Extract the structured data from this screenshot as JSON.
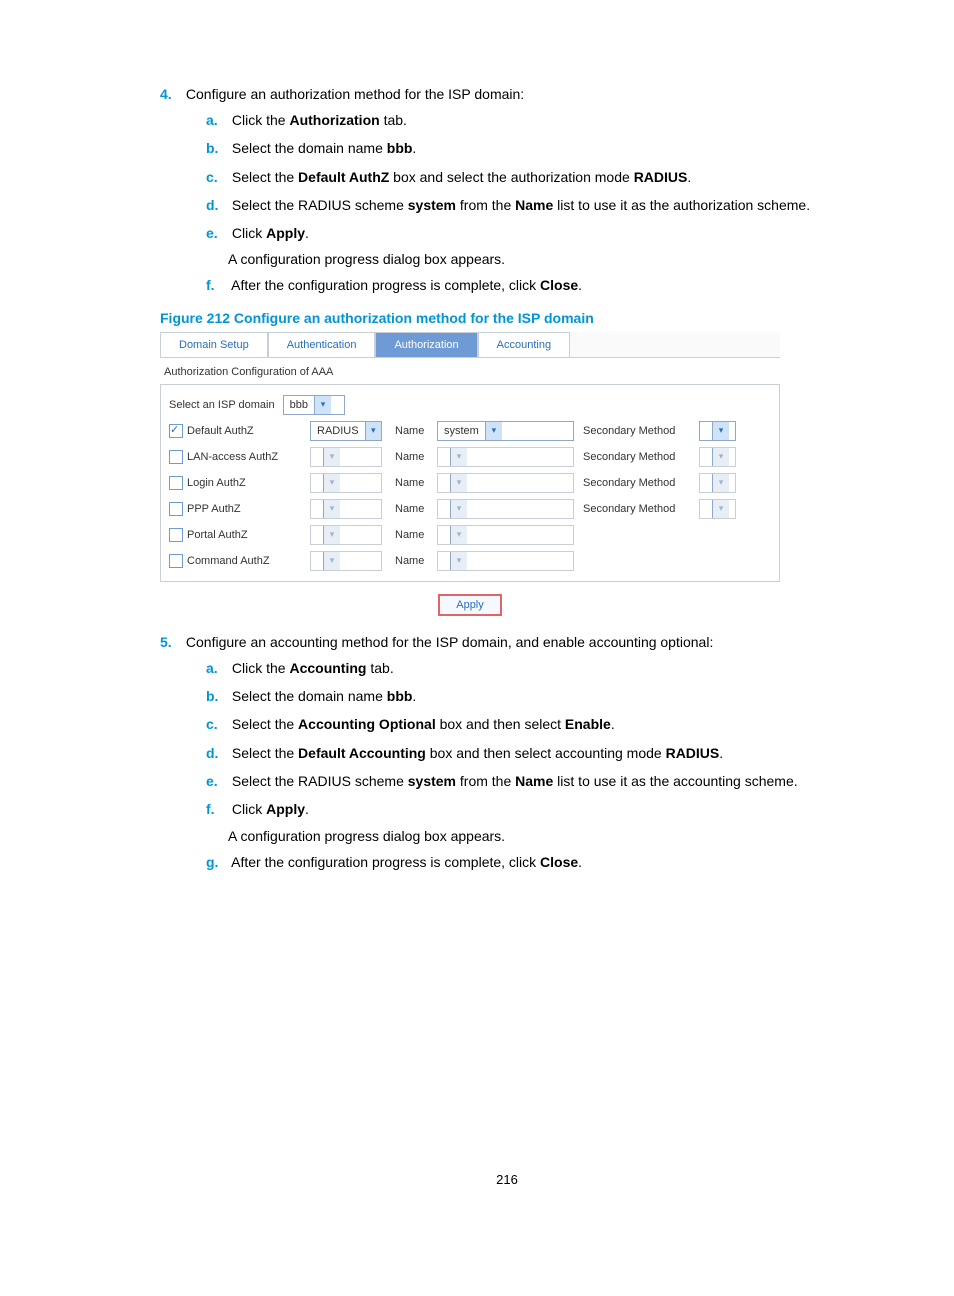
{
  "step4": {
    "num": "4.",
    "title": "Configure an authorization method for the ISP domain:",
    "subs": {
      "a": {
        "letter": "a.",
        "pre": "Click the ",
        "bold": "Authorization",
        "post": " tab."
      },
      "b": {
        "letter": "b.",
        "pre": "Select the domain name ",
        "bold": "bbb",
        "post": "."
      },
      "c": {
        "letter": "c.",
        "pre": "Select the ",
        "bold1": "Default AuthZ",
        "mid": " box and select the authorization mode ",
        "bold2": "RADIUS",
        "post": "."
      },
      "d": {
        "letter": "d.",
        "pre": "Select the RADIUS scheme ",
        "bold1": "system",
        "mid": " from the ",
        "bold2": "Name",
        "post": " list to use it as the authorization scheme."
      },
      "e": {
        "letter": "e.",
        "pre": "Click ",
        "bold": "Apply",
        "post": ".",
        "extra": "A configuration progress dialog box appears."
      },
      "f": {
        "letter": "f.",
        "pre": "After the configuration progress is complete, click ",
        "bold": "Close",
        "post": "."
      }
    }
  },
  "figure": {
    "caption": "Figure 212 Configure an authorization method for the ISP domain",
    "tabs": [
      "Domain Setup",
      "Authentication",
      "Authorization",
      "Accounting"
    ],
    "active_tab": 2,
    "section_label": "Authorization Configuration of AAA",
    "domain_label": "Select an ISP domain",
    "domain_value": "bbb",
    "rows": [
      {
        "label": "Default AuthZ",
        "checked": true,
        "mode": "RADIUS",
        "name": "system",
        "sec": "Secondary Method",
        "sec_dd": true,
        "enabled": true
      },
      {
        "label": "LAN-access AuthZ",
        "checked": false,
        "mode": "",
        "name": "",
        "sec": "Secondary Method",
        "sec_dd": true,
        "enabled": false
      },
      {
        "label": "Login AuthZ",
        "checked": false,
        "mode": "",
        "name": "",
        "sec": "Secondary Method",
        "sec_dd": true,
        "enabled": false
      },
      {
        "label": "PPP AuthZ",
        "checked": false,
        "mode": "",
        "name": "",
        "sec": "Secondary Method",
        "sec_dd": true,
        "enabled": false
      },
      {
        "label": "Portal AuthZ",
        "checked": false,
        "mode": "",
        "name": "",
        "sec": "",
        "sec_dd": false,
        "enabled": false
      },
      {
        "label": "Command AuthZ",
        "checked": false,
        "mode": "",
        "name": "",
        "sec": "",
        "sec_dd": false,
        "enabled": false
      }
    ],
    "name_col": "Name",
    "apply": "Apply"
  },
  "step5": {
    "num": "5.",
    "title": "Configure an accounting method for the ISP domain, and enable accounting optional:",
    "subs": {
      "a": {
        "letter": "a.",
        "pre": "Click the ",
        "bold": "Accounting",
        "post": " tab."
      },
      "b": {
        "letter": "b.",
        "pre": "Select the domain name ",
        "bold": "bbb",
        "post": "."
      },
      "c": {
        "letter": "c.",
        "pre": "Select the ",
        "bold1": "Accounting Optional",
        "mid": " box and then select ",
        "bold2": "Enable",
        "post": "."
      },
      "d": {
        "letter": "d.",
        "pre": "Select the ",
        "bold1": "Default Accounting",
        "mid": " box and then select accounting mode ",
        "bold2": "RADIUS",
        "post": "."
      },
      "e": {
        "letter": "e.",
        "pre": "Select the RADIUS scheme ",
        "bold1": "system",
        "mid": " from the ",
        "bold2": "Name",
        "post": " list to use it as the accounting scheme."
      },
      "f": {
        "letter": "f.",
        "pre": "Click ",
        "bold": "Apply",
        "post": ".",
        "extra": "A configuration progress dialog box appears."
      },
      "g": {
        "letter": "g.",
        "pre": "After the configuration progress is complete, click ",
        "bold": "Close",
        "post": "."
      }
    }
  },
  "page_number": "216",
  "colors": {
    "accent": "#0096d6",
    "tab_active_bg": "#6e9bd6",
    "tab_text": "#2a6ebb",
    "border": "#c9cfd6",
    "apply_border": "#e06666"
  }
}
